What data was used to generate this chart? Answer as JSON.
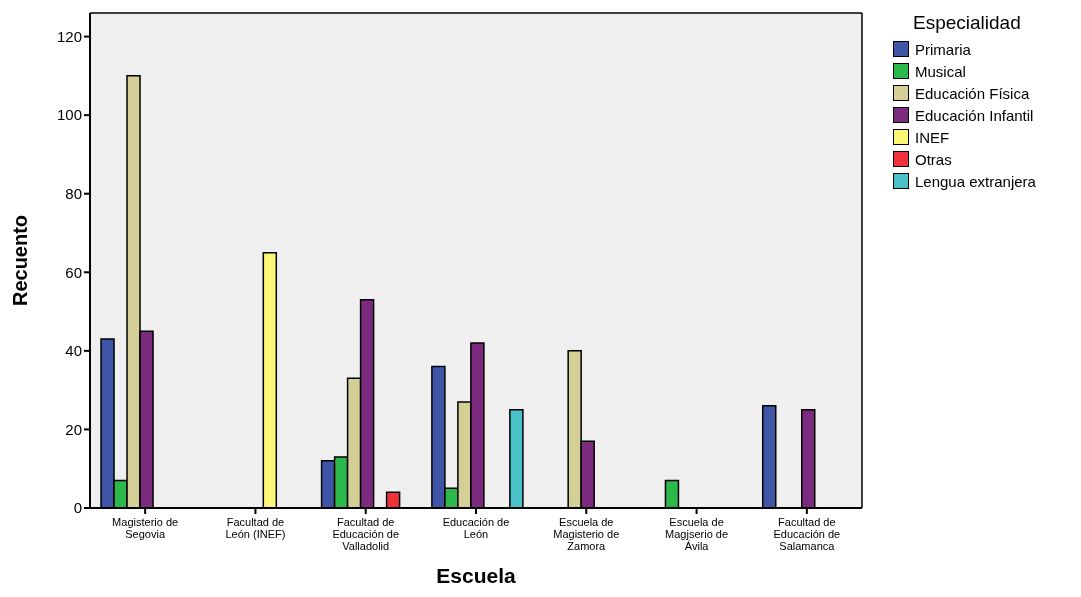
{
  "chart_data": {
    "type": "bar",
    "xlabel": "Escuela",
    "ylabel": "Recuento",
    "legend_title": "Especialidad",
    "categories": [
      "Magisterio de Segovia",
      "Facultad de León (INEF)",
      "Facultad de Educación de Valladolid",
      "Educación de León",
      "Escuela de Magisterio de Zamora",
      "Escuela de Magjserio de Ávila",
      "Facultad de Educación de Salamanca"
    ],
    "series": [
      {
        "name": "Primaria",
        "color": "#3f56a8",
        "values": [
          43,
          null,
          12,
          36,
          null,
          null,
          26
        ]
      },
      {
        "name": "Musical",
        "color": "#2db84b",
        "values": [
          7,
          null,
          13,
          5,
          null,
          7,
          null
        ]
      },
      {
        "name": "Educación Física",
        "color": "#d4cf96",
        "values": [
          110,
          null,
          33,
          27,
          40,
          null,
          null
        ]
      },
      {
        "name": "Educación Infantil",
        "color": "#7b2a7d",
        "values": [
          45,
          null,
          53,
          42,
          17,
          null,
          25
        ]
      },
      {
        "name": "INEF",
        "color": "#fbf776",
        "values": [
          null,
          65,
          null,
          null,
          null,
          null,
          null
        ]
      },
      {
        "name": "Otras",
        "color": "#ee3438",
        "values": [
          null,
          null,
          4,
          null,
          null,
          null,
          null
        ]
      },
      {
        "name": "Lengua extranjera",
        "color": "#48c2c8",
        "values": [
          null,
          null,
          null,
          25,
          null,
          null,
          null
        ]
      }
    ],
    "ylim": [
      0,
      126
    ],
    "yticks": [
      0,
      20,
      40,
      60,
      80,
      100,
      120
    ],
    "grid": false,
    "legend": "top right"
  }
}
